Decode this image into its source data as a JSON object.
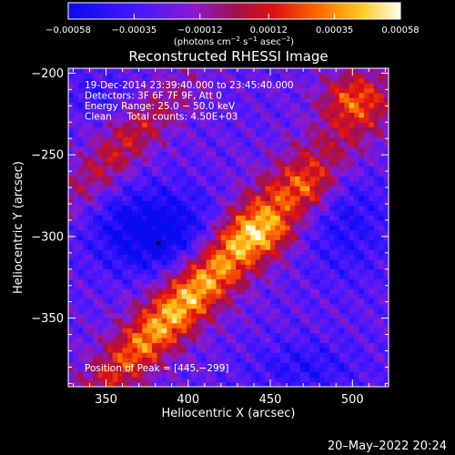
{
  "chart_data": {
    "type": "heatmap",
    "title": "Reconstructed RHESSI Image",
    "xlabel": "Heliocentric X (arcsec)",
    "ylabel": "Heliocentric Y (arcsec)",
    "xlim": [
      327,
      522
    ],
    "ylim": [
      -392,
      -197
    ],
    "xticks": [
      {
        "value": 350,
        "label": "350"
      },
      {
        "value": 400,
        "label": "400"
      },
      {
        "value": 450,
        "label": "450"
      },
      {
        "value": 500,
        "label": "500"
      }
    ],
    "yticks": [
      {
        "value": -200,
        "label": "−200"
      },
      {
        "value": -250,
        "label": "−250"
      },
      {
        "value": -300,
        "label": "−300"
      },
      {
        "value": -350,
        "label": "−350"
      }
    ],
    "colorbar": {
      "range": [
        -0.00058,
        0.00058
      ],
      "ticks": [
        {
          "value": -0.00058,
          "label": "−0.00058"
        },
        {
          "value": -0.00035,
          "label": "−0.00035"
        },
        {
          "value": -0.00012,
          "label": "−0.00012"
        },
        {
          "value": 0.00012,
          "label": "0.00012"
        },
        {
          "value": 0.00035,
          "label": "0.00035"
        },
        {
          "value": 0.00058,
          "label": "0.00058"
        }
      ],
      "label_base": "(photons cm",
      "label_sup1": "−2",
      "label_mid1": " s",
      "label_sup2": "−1",
      "label_mid2": " asec",
      "label_sup3": "−2",
      "label_end": ")"
    },
    "info_lines": [
      "19-Dec-2014 23:39:40.000 to 23:45:40.000",
      "Detectors: 3F 6F 7F 9F, Att 0",
      "Energy Range: 25.0 − 50.0 keV",
      "Clean     Total counts: 4.50E+03"
    ],
    "peak_text": "Position of Peak = [445,−299]",
    "peak": {
      "x": 445,
      "y": -299
    },
    "minimum_marker": {
      "x": 382,
      "y": -304
    },
    "features": [
      {
        "kind": "ridge",
        "x0": 435,
        "y0": -300,
        "angle_deg": 45,
        "along": 72,
        "across": 14,
        "amp": 0.00052
      },
      {
        "kind": "ridge",
        "x0": 382,
        "y0": -357,
        "angle_deg": 45,
        "along": 48,
        "across": 10,
        "amp": 0.00036
      },
      {
        "kind": "ridge",
        "x0": 360,
        "y0": -245,
        "angle_deg": 45,
        "along": 42,
        "across": 10,
        "amp": 0.00034
      },
      {
        "kind": "blob",
        "x0": 445,
        "y0": -299,
        "sx": 15,
        "sy": 10,
        "amp": 0.00022
      },
      {
        "kind": "blob",
        "x0": 500,
        "y0": -215,
        "sx": 14,
        "sy": 12,
        "amp": 0.0004
      },
      {
        "kind": "blob",
        "x0": 475,
        "y0": -270,
        "sx": 10,
        "sy": 9,
        "amp": 0.00018
      },
      {
        "kind": "blob",
        "x0": 380,
        "y0": -297,
        "sx": 26,
        "sy": 18,
        "amp": -0.00045
      },
      {
        "kind": "blob",
        "x0": 495,
        "y0": -290,
        "sx": 20,
        "sy": 25,
        "amp": -0.00022
      },
      {
        "kind": "blob",
        "x0": 470,
        "y0": -380,
        "sx": 24,
        "sy": 12,
        "amp": -0.0002
      },
      {
        "kind": "blob",
        "x0": 345,
        "y0": -212,
        "sx": 12,
        "sy": 8,
        "amp": -0.00015
      }
    ],
    "background": -0.00026,
    "ripple": 0.00012
  },
  "footer": {
    "date": "20–May–2022 20:24"
  }
}
